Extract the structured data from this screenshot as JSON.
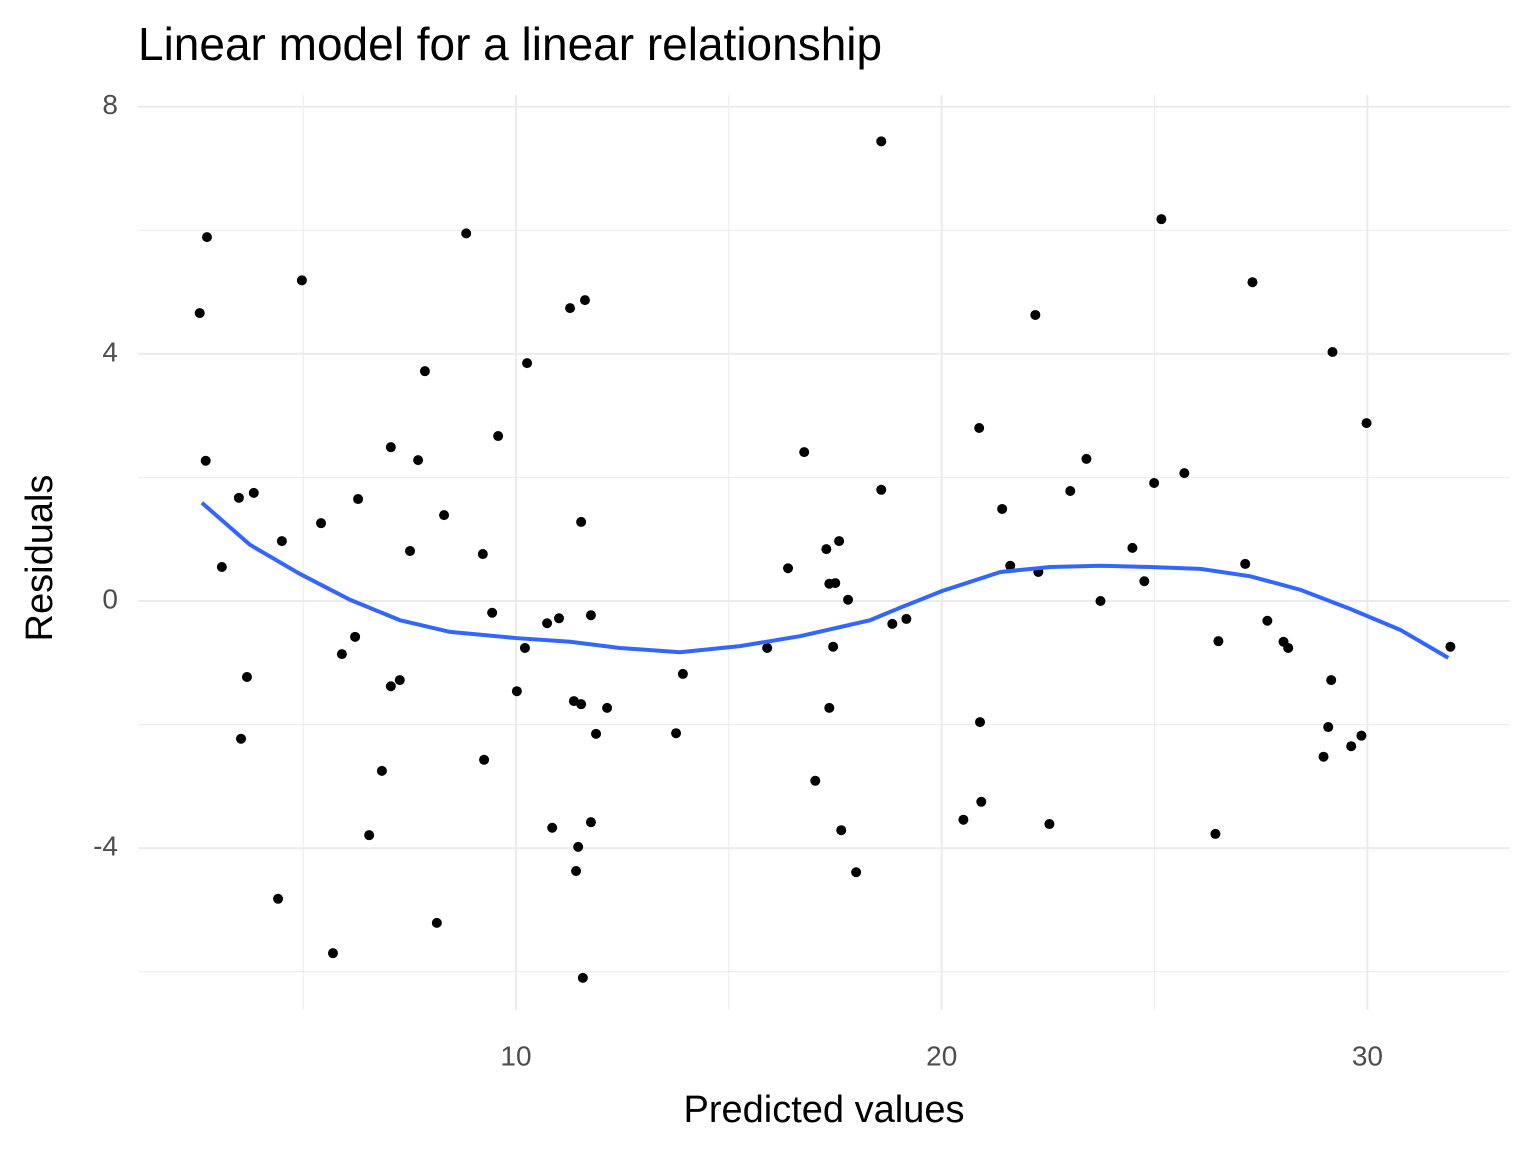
{
  "chart_data": {
    "type": "scatter",
    "title": "Linear model for a linear relationship",
    "x_label": "Predicted values",
    "y_label": "Residuals",
    "xlim": [
      1.12,
      33.35
    ],
    "ylim": [
      -6.62,
      8.19
    ],
    "xticks": [
      10,
      20,
      30
    ],
    "yticks": [
      -4,
      0,
      4,
      8
    ],
    "xminorticks": [
      5,
      15,
      25
    ],
    "yminorticks": [
      -6,
      -2,
      2,
      6
    ],
    "grid": true,
    "series": [
      {
        "type": "scatter",
        "color": "#000000",
        "x": [
          2.57,
          2.74,
          2.71,
          3.49,
          3.84,
          3.09,
          3.68,
          3.54,
          4.5,
          4.97,
          4.41,
          5.42,
          5.7,
          5.91,
          6.22,
          6.29,
          6.55,
          6.85,
          7.06,
          7.06,
          7.27,
          7.51,
          7.7,
          7.86,
          8.14,
          8.31,
          8.83,
          9.22,
          9.25,
          9.44,
          9.58,
          10.02,
          10.21,
          10.26,
          10.73,
          10.85,
          11.01,
          11.27,
          11.36,
          11.46,
          11.41,
          11.53,
          11.53,
          11.57,
          11.62,
          11.76,
          11.76,
          11.88,
          12.14,
          13.76,
          13.92,
          15.9,
          16.39,
          16.77,
          17.03,
          17.29,
          17.36,
          17.36,
          17.5,
          17.45,
          17.59,
          17.64,
          17.8,
          17.99,
          18.58,
          18.58,
          18.84,
          19.17,
          20.51,
          20.88,
          20.9,
          20.93,
          21.42,
          21.61,
          22.2,
          22.27,
          22.53,
          23.02,
          23.4,
          23.73,
          24.48,
          24.76,
          24.99,
          25.16,
          25.7,
          26.43,
          26.5,
          27.13,
          27.3,
          27.65,
          28.03,
          28.14,
          28.97,
          29.08,
          29.15,
          29.18,
          29.62,
          29.86,
          29.98,
          31.95
        ],
        "values": [
          4.66,
          5.89,
          2.27,
          1.67,
          1.75,
          0.55,
          -1.23,
          -2.23,
          0.97,
          5.19,
          -4.82,
          1.26,
          -5.7,
          -0.86,
          -0.58,
          1.65,
          -3.79,
          -2.75,
          2.49,
          -1.38,
          -1.28,
          0.81,
          2.28,
          3.72,
          -5.21,
          1.39,
          5.95,
          0.76,
          -2.57,
          -0.19,
          2.67,
          -1.46,
          -0.76,
          3.85,
          -0.36,
          -3.67,
          -0.28,
          4.74,
          -1.62,
          -3.98,
          -4.37,
          -1.67,
          1.28,
          -6.1,
          4.87,
          -3.58,
          -0.23,
          -2.15,
          -1.73,
          -2.14,
          -1.18,
          -0.76,
          0.53,
          2.41,
          -2.91,
          0.84,
          -1.73,
          0.28,
          0.29,
          -0.74,
          0.97,
          -3.71,
          0.02,
          -4.39,
          7.44,
          1.8,
          -0.37,
          -0.29,
          -3.54,
          2.8,
          -1.96,
          -3.25,
          1.49,
          0.57,
          4.63,
          0.47,
          -3.61,
          1.78,
          2.3,
          0.0,
          0.86,
          0.32,
          1.91,
          6.18,
          2.07,
          -3.77,
          -0.65,
          0.6,
          5.16,
          -0.32,
          -0.66,
          -0.76,
          -2.52,
          -2.04,
          -1.28,
          4.03,
          -2.35,
          -2.18,
          2.88,
          -0.74
        ]
      },
      {
        "type": "line",
        "color": "#3366ff",
        "x": [
          2.62,
          3.75,
          4.92,
          6.1,
          7.27,
          8.45,
          10.0,
          11.27,
          12.44,
          13.85,
          15.26,
          16.67,
          18.32,
          19.02,
          20.0,
          21.38,
          22.55,
          23.73,
          24.9,
          26.08,
          27.25,
          28.43,
          29.6,
          30.78,
          31.9
        ],
        "values": [
          1.59,
          0.91,
          0.44,
          0.02,
          -0.31,
          -0.5,
          -0.6,
          -0.66,
          -0.76,
          -0.83,
          -0.73,
          -0.57,
          -0.31,
          -0.11,
          0.16,
          0.47,
          0.55,
          0.57,
          0.55,
          0.52,
          0.4,
          0.18,
          -0.13,
          -0.47,
          -0.92
        ]
      }
    ]
  }
}
